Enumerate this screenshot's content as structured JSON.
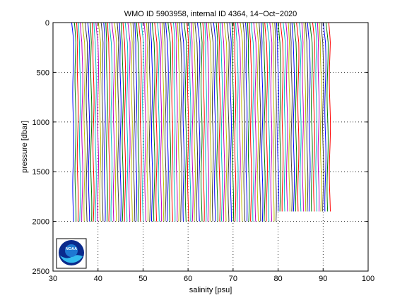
{
  "chart_data": {
    "type": "line",
    "title": "WMO ID 5903958, internal ID 4364, 14−Oct−2020",
    "xlabel": "salinity [psu]",
    "ylabel": "pressure [dbar]",
    "xlim": [
      30,
      100
    ],
    "ylim": [
      0,
      2500
    ],
    "y_reversed": true,
    "grid": true,
    "xticks": [
      30,
      40,
      50,
      60,
      70,
      80,
      90,
      100
    ],
    "yticks": [
      0,
      500,
      1000,
      1500,
      2000,
      2500
    ],
    "series_colors": [
      "#0000ff",
      "#008000",
      "#ff0000",
      "#00bfbf",
      "#bf00bf",
      "#bfbf00",
      "#404040"
    ],
    "profiles": {
      "first_base_salinity": 34.5,
      "offset_step": 0.5,
      "count": 115,
      "max_pressure": 2000,
      "late_max_pressure": 1900,
      "late_from_salinity": 80
    }
  },
  "logo": {
    "name": "noaa-logo",
    "text": "NOAA",
    "colors": {
      "outer": "#0a2a8c",
      "inner": "#1e78d2",
      "wave": "#33bbee"
    }
  }
}
